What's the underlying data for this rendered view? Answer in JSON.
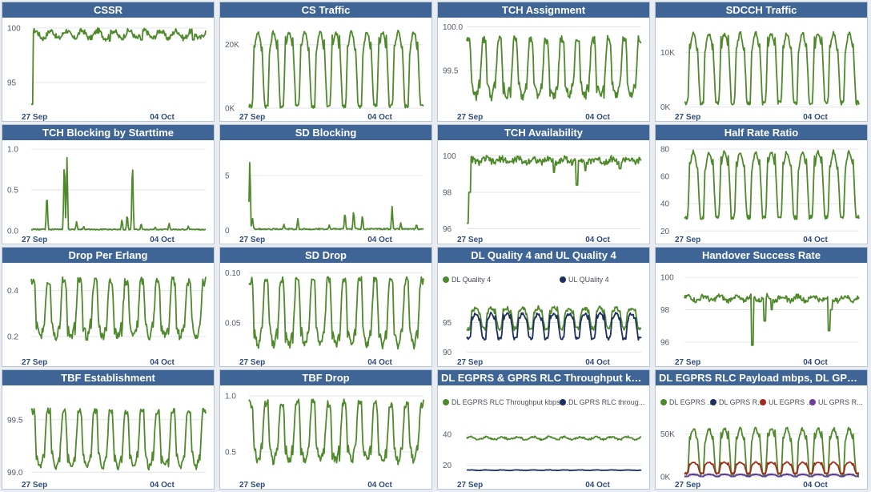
{
  "colors": {
    "green": "#4e8a2b",
    "navy": "#1d2f5e",
    "red": "#a32a18",
    "purple": "#6a3fa0",
    "header": "#3e6595"
  },
  "chart_data": [
    {
      "id": "cssr",
      "title": "CSSR",
      "type": "line",
      "ylim": [
        92.5,
        100.5
      ],
      "yticks": [
        {
          "v": 100,
          "label": "100"
        },
        {
          "v": 95,
          "label": "95"
        }
      ],
      "xticks": [
        "27 Sep",
        "04 Oct"
      ],
      "series": [
        {
          "color": "#4e8a2b",
          "pattern": "flat",
          "base": 99.4,
          "amp": 0.35,
          "noise": 0.25,
          "dips": [
            [
              0.005,
              93
            ],
            [
              0.45,
              98.8
            ],
            [
              0.63,
              98.9
            ],
            [
              0.93,
              98.9
            ]
          ]
        }
      ]
    },
    {
      "id": "cs-traffic",
      "title": "CS Traffic",
      "type": "line",
      "ylim": [
        -500,
        27000
      ],
      "yticks": [
        {
          "v": 20000,
          "label": "20K"
        },
        {
          "v": 0,
          "label": "0K"
        }
      ],
      "xticks": [
        "27 Sep",
        "04 Oct"
      ],
      "series": [
        {
          "color": "#4e8a2b",
          "pattern": "daily",
          "min": 700,
          "max": 24000,
          "noise": 700
        }
      ]
    },
    {
      "id": "tch-assignment",
      "title": "TCH Assignment",
      "type": "line",
      "ylim": [
        99.05,
        100.05
      ],
      "yticks": [
        {
          "v": 100,
          "label": "100.0"
        },
        {
          "v": 99.5,
          "label": "99.5"
        }
      ],
      "xticks": [
        "27 Sep",
        "04 Oct"
      ],
      "series": [
        {
          "color": "#4e8a2b",
          "pattern": "daily-inv",
          "min": 99.2,
          "max": 99.85,
          "noise": 0.05
        }
      ]
    },
    {
      "id": "sdcch-traffic",
      "title": "SDCCH Traffic",
      "type": "line",
      "ylim": [
        -500,
        15500
      ],
      "yticks": [
        {
          "v": 10000,
          "label": "10K"
        },
        {
          "v": 0,
          "label": "0K"
        }
      ],
      "xticks": [
        "27 Sep",
        "04 Oct"
      ],
      "series": [
        {
          "color": "#4e8a2b",
          "pattern": "daily",
          "min": 800,
          "max": 13500,
          "noise": 400
        }
      ]
    },
    {
      "id": "tch-blocking",
      "title": "TCH Blocking by Starttime",
      "type": "line",
      "ylim": [
        -0.02,
        1.05
      ],
      "yticks": [
        {
          "v": 1,
          "label": "1.0"
        },
        {
          "v": 0.5,
          "label": "0.5"
        },
        {
          "v": 0,
          "label": "0.0"
        }
      ],
      "xticks": [
        "27 Sep",
        "04 Oct"
      ],
      "series": [
        {
          "color": "#4e8a2b",
          "pattern": "spiky",
          "base": 0.01,
          "noise": 0.012,
          "spikes": [
            [
              0.09,
              0.5
            ],
            [
              0.19,
              0.95
            ],
            [
              0.205,
              0.9
            ],
            [
              0.26,
              0.12
            ],
            [
              0.3,
              0.06
            ],
            [
              0.52,
              0.15
            ],
            [
              0.55,
              0.22
            ],
            [
              0.58,
              0.93
            ],
            [
              0.63,
              0.1
            ],
            [
              0.71,
              0.05
            ],
            [
              0.79,
              0.1
            ],
            [
              0.9,
              0.06
            ]
          ]
        }
      ]
    },
    {
      "id": "sd-blocking",
      "title": "SD Blocking",
      "type": "line",
      "ylim": [
        -0.2,
        7.8
      ],
      "yticks": [
        {
          "v": 5,
          "label": "5"
        },
        {
          "v": 0,
          "label": "0"
        }
      ],
      "xticks": [
        "27 Sep",
        "04 Oct"
      ],
      "series": [
        {
          "color": "#4e8a2b",
          "pattern": "spiky",
          "base": 0.05,
          "noise": 0.12,
          "spikes": [
            [
              0.005,
              6.9
            ],
            [
              0.02,
              1.2
            ],
            [
              0.2,
              0.6
            ],
            [
              0.28,
              1.1
            ],
            [
              0.46,
              0.5
            ],
            [
              0.55,
              1.8
            ],
            [
              0.6,
              2.0
            ],
            [
              0.65,
              1.5
            ],
            [
              0.82,
              2.2
            ],
            [
              0.87,
              0.7
            ],
            [
              0.96,
              0.6
            ]
          ]
        }
      ]
    },
    {
      "id": "tch-availability",
      "title": "TCH Availability",
      "type": "line",
      "ylim": [
        95.8,
        100.6
      ],
      "yticks": [
        {
          "v": 100,
          "label": "100"
        },
        {
          "v": 98,
          "label": "98"
        },
        {
          "v": 96,
          "label": "96"
        }
      ],
      "xticks": [
        "27 Sep",
        "04 Oct"
      ],
      "series": [
        {
          "color": "#4e8a2b",
          "pattern": "flat",
          "base": 99.75,
          "amp": 0.1,
          "noise": 0.18,
          "dips": [
            [
              0.005,
              96.3
            ],
            [
              0.015,
              98.0
            ],
            [
              0.5,
              99.1
            ],
            [
              0.63,
              98.4
            ],
            [
              0.68,
              99.2
            ],
            [
              0.88,
              99.3
            ]
          ]
        }
      ]
    },
    {
      "id": "half-rate-ratio",
      "title": "Half Rate Ratio",
      "type": "line",
      "ylim": [
        19,
        83
      ],
      "yticks": [
        {
          "v": 80,
          "label": "80"
        },
        {
          "v": 60,
          "label": "60"
        },
        {
          "v": 40,
          "label": "40"
        },
        {
          "v": 20,
          "label": "20"
        }
      ],
      "xticks": [
        "27 Sep",
        "04 Oct"
      ],
      "series": [
        {
          "color": "#4e8a2b",
          "pattern": "daily",
          "min": 30,
          "max": 78,
          "noise": 1.5
        }
      ]
    },
    {
      "id": "drop-per-erlang",
      "title": "Drop Per Erlang",
      "type": "line",
      "ylim": [
        0.12,
        0.5
      ],
      "yticks": [
        {
          "v": 0.4,
          "label": "0.4"
        },
        {
          "v": 0.2,
          "label": "0.2"
        }
      ],
      "xticks": [
        "27 Sep",
        "04 Oct"
      ],
      "series": [
        {
          "color": "#4e8a2b",
          "pattern": "daily-inv",
          "min": 0.2,
          "max": 0.44,
          "noise": 0.02
        }
      ]
    },
    {
      "id": "sd-drop",
      "title": "SD Drop",
      "type": "line",
      "ylim": [
        0.018,
        0.105
      ],
      "yticks": [
        {
          "v": 0.1,
          "label": "0.10"
        },
        {
          "v": 0.05,
          "label": "0.05"
        }
      ],
      "xticks": [
        "27 Sep",
        "04 Oct"
      ],
      "series": [
        {
          "color": "#4e8a2b",
          "pattern": "daily-inv",
          "min": 0.028,
          "max": 0.092,
          "noise": 0.004
        }
      ]
    },
    {
      "id": "dl-ul-quality",
      "title": "DL Quality 4 and UL Quality 4",
      "type": "line",
      "ylim": [
        89.5,
        100.5
      ],
      "yticks": [
        {
          "v": 95,
          "label": "95"
        },
        {
          "v": 90,
          "label": "90"
        }
      ],
      "xticks": [
        "27 Sep",
        "04 Oct"
      ],
      "legend": [
        "DL Quality 4",
        "UL QUality 4"
      ],
      "series": [
        {
          "color": "#4e8a2b",
          "pattern": "daily",
          "min": 94.0,
          "max": 97.5,
          "noise": 0.35
        },
        {
          "color": "#1d2f5e",
          "pattern": "daily",
          "min": 92.3,
          "max": 96.5,
          "noise": 0.25
        }
      ]
    },
    {
      "id": "handover-success",
      "title": "Handover Success Rate",
      "type": "line",
      "ylim": [
        95.2,
        100.6
      ],
      "yticks": [
        {
          "v": 100,
          "label": "100"
        },
        {
          "v": 98,
          "label": "98"
        },
        {
          "v": 96,
          "label": "96"
        }
      ],
      "xticks": [
        "27 Sep",
        "04 Oct"
      ],
      "series": [
        {
          "color": "#4e8a2b",
          "pattern": "flat",
          "base": 98.7,
          "amp": 0.15,
          "noise": 0.15,
          "dips": [
            [
              0.39,
              95.8
            ],
            [
              0.46,
              97.3
            ],
            [
              0.5,
              98.0
            ],
            [
              0.83,
              96.7
            ],
            [
              0.84,
              98.0
            ]
          ]
        }
      ]
    },
    {
      "id": "tbf-establishment",
      "title": "TBF Establishment",
      "type": "line",
      "ylim": [
        98.95,
        99.78
      ],
      "yticks": [
        {
          "v": 99.5,
          "label": "99.5"
        },
        {
          "v": 99,
          "label": "99.0"
        }
      ],
      "xticks": [
        "27 Sep",
        "04 Oct"
      ],
      "series": [
        {
          "color": "#4e8a2b",
          "pattern": "daily-inv",
          "min": 99.05,
          "max": 99.58,
          "noise": 0.03
        }
      ]
    },
    {
      "id": "tbf-drop",
      "title": "TBF Drop",
      "type": "line",
      "ylim": [
        0.27,
        1.05
      ],
      "yticks": [
        {
          "v": 1,
          "label": "1.0"
        },
        {
          "v": 0.5,
          "label": "0.5"
        }
      ],
      "xticks": [
        "27 Sep",
        "04 Oct"
      ],
      "series": [
        {
          "color": "#4e8a2b",
          "pattern": "daily-inv",
          "min": 0.42,
          "max": 0.93,
          "noise": 0.04
        }
      ]
    },
    {
      "id": "egprs-throughput",
      "title": "DL EGPRS & GPRS RLC Throughput kbps...",
      "type": "line",
      "ylim": [
        12,
        54
      ],
      "yticks": [
        {
          "v": 40,
          "label": "40"
        },
        {
          "v": 20,
          "label": "20"
        }
      ],
      "xticks": [
        "27 Sep",
        "04 Oct"
      ],
      "legend": [
        "DL EGPRS RLC Throughput kbps/...",
        "DL GPRS RLC throug..."
      ],
      "series": [
        {
          "color": "#4e8a2b",
          "pattern": "flat",
          "base": 37.5,
          "amp": 0.8,
          "noise": 0.6,
          "dips": []
        },
        {
          "color": "#1d2f5e",
          "pattern": "flat",
          "base": 16.8,
          "amp": 0.15,
          "noise": 0.12,
          "dips": []
        }
      ]
    },
    {
      "id": "egprs-payload",
      "title": "DL EGPRS RLC Payload mbps, DL GPRS R...",
      "type": "line",
      "ylim": [
        -1000,
        75000
      ],
      "yticks": [
        {
          "v": 50000,
          "label": "50K"
        },
        {
          "v": 0,
          "label": "0K"
        }
      ],
      "xticks": [
        "27 Sep",
        "04 Oct"
      ],
      "legend": [
        "DL EGPRS ...",
        "DL GPRS R...",
        "UL EGPRS ...",
        "UL GPRS R..."
      ],
      "series": [
        {
          "color": "#4e8a2b",
          "pattern": "daily",
          "min": 3000,
          "max": 56000,
          "noise": 2000
        },
        {
          "color": "#1d2f5e",
          "pattern": "daily",
          "min": 500,
          "max": 2500,
          "noise": 200
        },
        {
          "color": "#a32a18",
          "pattern": "daily",
          "min": 4000,
          "max": 17000,
          "noise": 500
        },
        {
          "color": "#6a3fa0",
          "pattern": "daily",
          "min": 200,
          "max": 3000,
          "noise": 200
        }
      ]
    }
  ]
}
